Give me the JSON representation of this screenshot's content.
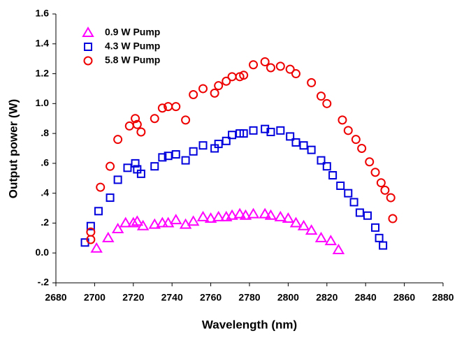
{
  "chart_data": {
    "type": "scatter",
    "x_label": "Wavelength (nm)",
    "y_label": "Output power (W)",
    "xlim": [
      2680,
      2880
    ],
    "ylim": [
      -0.2,
      1.6
    ],
    "xticks": [
      2680,
      2700,
      2720,
      2740,
      2760,
      2780,
      2800,
      2820,
      2840,
      2860,
      2880
    ],
    "yticks": [
      {
        "value": -0.2,
        "label": "-.2"
      },
      {
        "value": 0,
        "label": "0.0"
      },
      {
        "value": 0.2,
        "label": ".2"
      },
      {
        "value": 0.4,
        "label": ".4"
      },
      {
        "value": 0.6,
        "label": ".6"
      },
      {
        "value": 0.8,
        "label": ".8"
      },
      {
        "value": 1,
        "label": "1.0"
      },
      1.2,
      1.4,
      1.6
    ],
    "legend": "upper left",
    "series": [
      {
        "name": "0.9 W Pump",
        "color": "#ff00ff",
        "marker": "triangle",
        "x": [
          2701,
          2707,
          2712,
          2716,
          2720,
          2722,
          2725,
          2731,
          2735,
          2738,
          2742,
          2747,
          2751,
          2756,
          2760,
          2764,
          2768,
          2771,
          2775,
          2778,
          2782,
          2788,
          2791,
          2796,
          2800,
          2804,
          2808,
          2812,
          2817,
          2822,
          2826
        ],
        "values": [
          0.03,
          0.1,
          0.16,
          0.2,
          0.2,
          0.21,
          0.18,
          0.19,
          0.2,
          0.2,
          0.22,
          0.19,
          0.21,
          0.24,
          0.23,
          0.24,
          0.24,
          0.25,
          0.26,
          0.25,
          0.26,
          0.26,
          0.25,
          0.24,
          0.23,
          0.2,
          0.18,
          0.15,
          0.1,
          0.08,
          0.02
        ]
      },
      {
        "name": "4.3 W Pump",
        "color": "#0000dd",
        "marker": "square",
        "x": [
          2695,
          2698,
          2702,
          2708,
          2712,
          2717,
          2721,
          2722,
          2724,
          2731,
          2735,
          2738,
          2742,
          2747,
          2751,
          2756,
          2762,
          2764,
          2768,
          2771,
          2775,
          2777,
          2782,
          2788,
          2791,
          2796,
          2801,
          2804,
          2808,
          2812,
          2817,
          2820,
          2823,
          2827,
          2831,
          2834,
          2837,
          2841,
          2845,
          2847,
          2849
        ],
        "values": [
          0.07,
          0.18,
          0.28,
          0.37,
          0.49,
          0.57,
          0.6,
          0.56,
          0.53,
          0.58,
          0.64,
          0.65,
          0.66,
          0.62,
          0.68,
          0.72,
          0.7,
          0.73,
          0.75,
          0.79,
          0.8,
          0.8,
          0.82,
          0.83,
          0.81,
          0.82,
          0.78,
          0.74,
          0.72,
          0.69,
          0.62,
          0.58,
          0.52,
          0.45,
          0.4,
          0.34,
          0.27,
          0.25,
          0.17,
          0.1,
          0.05
        ]
      },
      {
        "name": "5.8 W Pump",
        "color": "#ee0000",
        "marker": "circle",
        "x": [
          2698,
          2698,
          2703,
          2708,
          2712,
          2718,
          2721,
          2722,
          2724,
          2731,
          2735,
          2738,
          2742,
          2747,
          2751,
          2756,
          2762,
          2764,
          2768,
          2771,
          2775,
          2777,
          2782,
          2788,
          2791,
          2796,
          2801,
          2804,
          2812,
          2817,
          2820,
          2828,
          2831,
          2835,
          2838,
          2842,
          2845,
          2848,
          2850,
          2853,
          2854
        ],
        "values": [
          0.09,
          0.14,
          0.44,
          0.58,
          0.76,
          0.85,
          0.9,
          0.86,
          0.81,
          0.9,
          0.97,
          0.98,
          0.98,
          0.89,
          1.06,
          1.1,
          1.07,
          1.12,
          1.15,
          1.18,
          1.18,
          1.19,
          1.26,
          1.28,
          1.24,
          1.25,
          1.23,
          1.2,
          1.14,
          1.05,
          1.0,
          0.89,
          0.82,
          0.76,
          0.7,
          0.61,
          0.54,
          0.47,
          0.42,
          0.37,
          0.23
        ]
      }
    ]
  }
}
